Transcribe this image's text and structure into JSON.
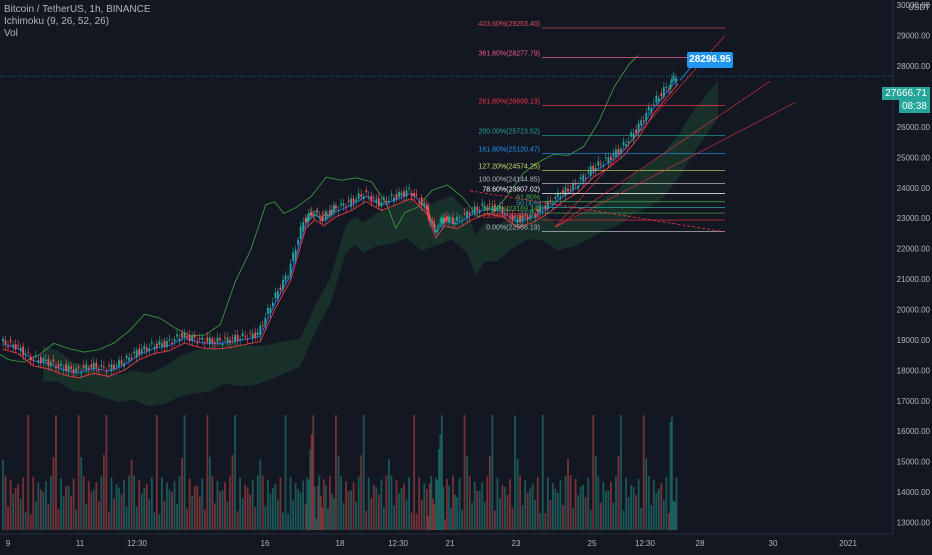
{
  "legend": {
    "title": "Bitcoin / TetherUS, 1h, BINANCE",
    "ichimoku": "Ichimoku (9, 26, 52, 26)",
    "vol": "Vol"
  },
  "axis": {
    "currency": "USDT",
    "last_price": "27666.71",
    "countdown": "08:38",
    "callout": "28296.95"
  },
  "chart_data": {
    "type": "line",
    "title": "Bitcoin / TetherUS, 1h, BINANCE",
    "y_ticks": [
      "30000.00",
      "29000.00",
      "28000.00",
      "27000.00",
      "26000.00",
      "25000.00",
      "24000.00",
      "23000.00",
      "22000.00",
      "21000.00",
      "20000.00",
      "19000.00",
      "18000.00",
      "17000.00",
      "16000.00",
      "15000.00",
      "14000.00",
      "13000.00"
    ],
    "ylim": [
      12950,
      30500
    ],
    "x_ticks": [
      "9",
      "11",
      "12:30",
      "16",
      "18",
      "12:30",
      "21",
      "23",
      "25",
      "12:30",
      "28",
      "30",
      "2021"
    ],
    "close_series": [
      [
        0,
        18950
      ],
      [
        5,
        18800
      ],
      [
        10,
        18400
      ],
      [
        15,
        18300
      ],
      [
        20,
        18100
      ],
      [
        25,
        18000
      ],
      [
        30,
        18150
      ],
      [
        35,
        18050
      ],
      [
        40,
        18250
      ],
      [
        45,
        18600
      ],
      [
        50,
        18800
      ],
      [
        55,
        18900
      ],
      [
        60,
        19150
      ],
      [
        65,
        19000
      ],
      [
        70,
        18950
      ],
      [
        75,
        19000
      ],
      [
        80,
        19100
      ],
      [
        85,
        19200
      ],
      [
        90,
        20300
      ],
      [
        95,
        21200
      ],
      [
        100,
        22900
      ],
      [
        103,
        23200
      ],
      [
        106,
        23000
      ],
      [
        110,
        23300
      ],
      [
        115,
        23500
      ],
      [
        120,
        23800
      ],
      [
        125,
        23500
      ],
      [
        130,
        23700
      ],
      [
        135,
        23900
      ],
      [
        140,
        23400
      ],
      [
        143,
        22600
      ],
      [
        146,
        23000
      ],
      [
        150,
        22900
      ],
      [
        155,
        23200
      ],
      [
        160,
        23400
      ],
      [
        165,
        23300
      ],
      [
        170,
        22950
      ],
      [
        175,
        23100
      ],
      [
        180,
        23400
      ],
      [
        185,
        23800
      ],
      [
        190,
        24100
      ],
      [
        195,
        24600
      ],
      [
        200,
        24900
      ],
      [
        205,
        25300
      ],
      [
        210,
        25900
      ],
      [
        215,
        26700
      ],
      [
        220,
        27300
      ],
      [
        223,
        27666.71
      ]
    ],
    "fibonacci": [
      {
        "label": "423.60%(29253.40)",
        "value": 29253.4,
        "color": "#e84a5f"
      },
      {
        "label": "361.80%(28277.79)",
        "value": 28277.79,
        "color": "#ef5b95"
      },
      {
        "label": "261.80%(26699.13)",
        "value": 26699.13,
        "color": "#f23645"
      },
      {
        "label": "200.00%(25723.52)",
        "value": 25723.52,
        "color": "#26a69a"
      },
      {
        "label": "161.80%(25120.47)",
        "value": 25120.47,
        "color": "#2196f3"
      },
      {
        "label": "127.20%(24574.25)",
        "value": 24574.25,
        "color": "#c9e265"
      },
      {
        "label": "100.00%(24144.85)",
        "value": 24144.85,
        "color": "#b2b5be"
      },
      {
        "label": "78.60%(23807.02)",
        "value": 23807.02,
        "color": "#ffffff"
      },
      {
        "label": "61.80%",
        "value": 23541.8,
        "color": "#4caf50"
      },
      {
        "label": "50.00%",
        "value": 23355.5,
        "color": "#26a69a"
      },
      {
        "label": "38.20%(23169.24)",
        "value": 23169.24,
        "color": "#4caf50"
      },
      {
        "label": "23.60%(22938.75)",
        "value": 22938.75,
        "color": "#f23645"
      },
      {
        "label": "0.00%(22566.19)",
        "value": 22566.19,
        "color": "#b2b5be"
      }
    ],
    "colors": {
      "up": "#26a69a",
      "down": "#ef5350",
      "leading_span_a": "#4caf50",
      "leading_span_b": "#f23645",
      "cloud": "#1b3a2e",
      "conversion": "#2962ff",
      "lagging": "#43a047",
      "background": "#131722"
    }
  }
}
